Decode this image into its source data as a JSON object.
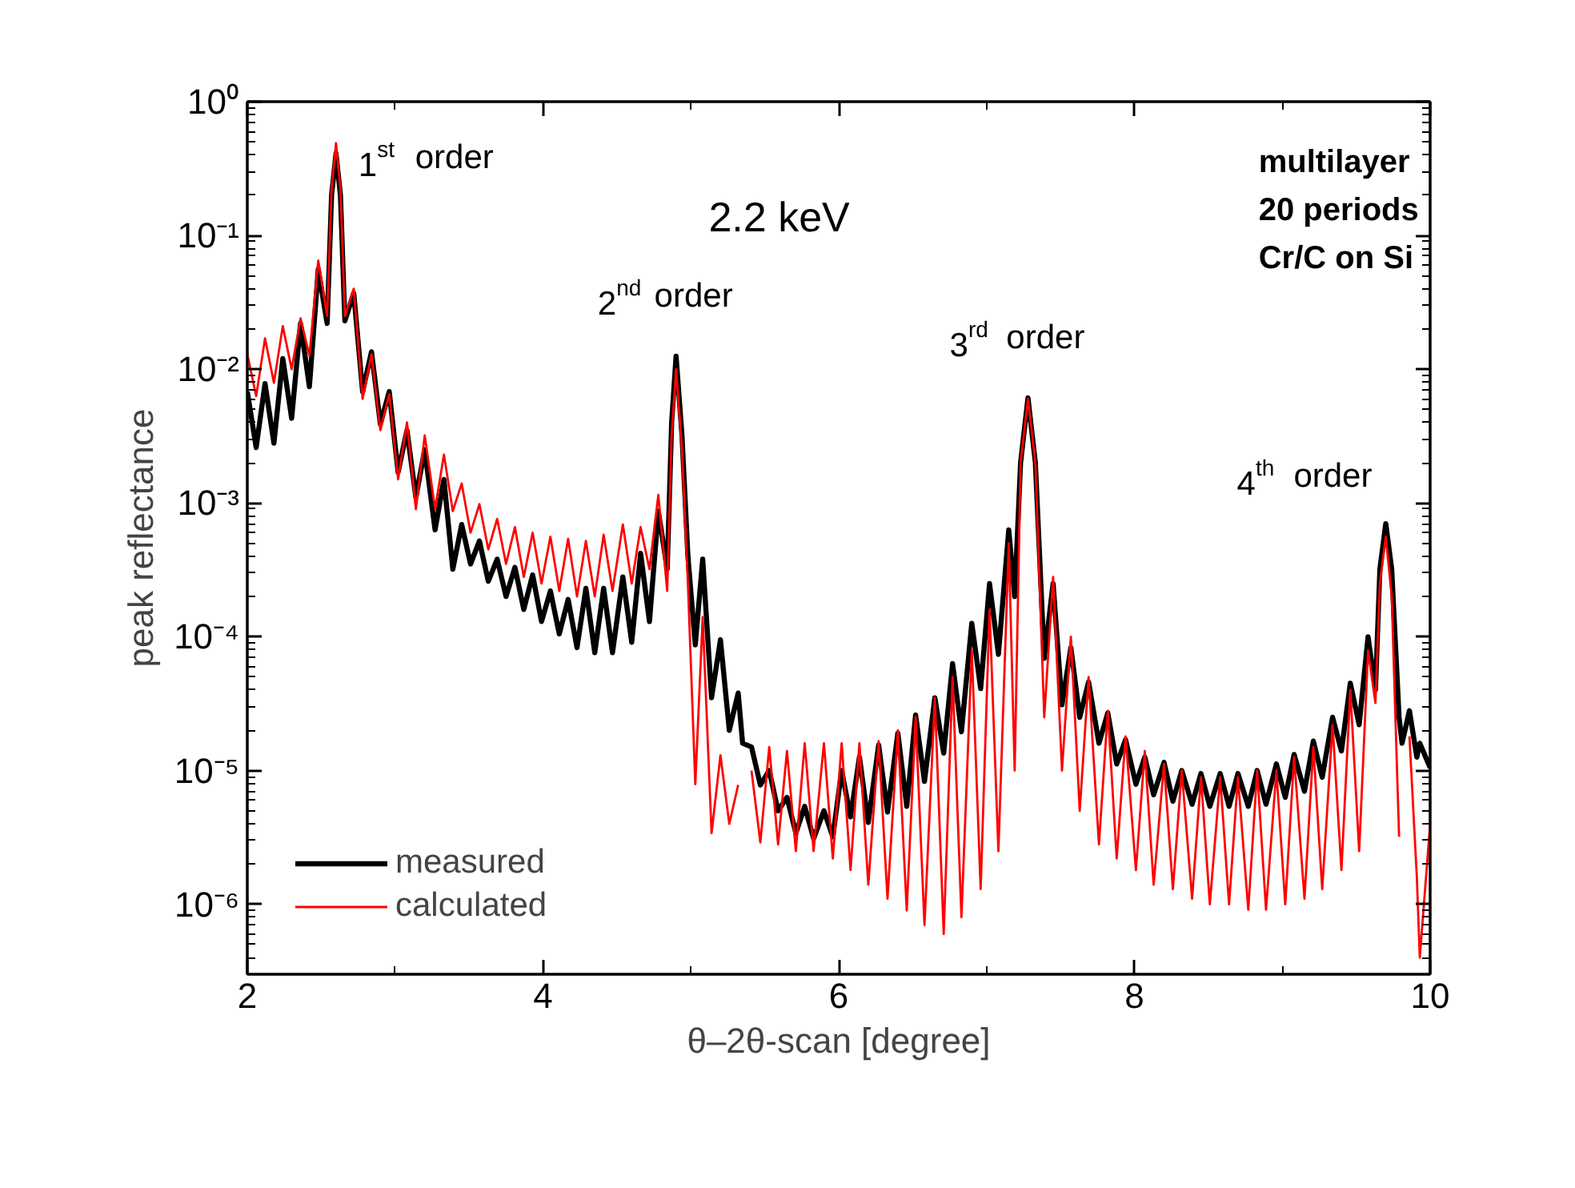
{
  "chart_data": {
    "type": "line",
    "log": "y",
    "xlabel": "θ–2θ-scan [degree]",
    "ylabel": "peak reflectance",
    "xlim": [
      2,
      10
    ],
    "xticks": [
      2,
      4,
      6,
      8,
      10
    ],
    "ylim": [
      3e-07,
      1
    ],
    "yticks": [
      {
        "value": 1,
        "label": "10⁰"
      },
      {
        "value": 0.1,
        "label": "10⁻¹"
      },
      {
        "value": 0.01,
        "label": "10⁻²"
      },
      {
        "value": 0.001,
        "label": "10⁻³"
      },
      {
        "value": 0.0001,
        "label": "10⁻⁴"
      },
      {
        "value": 1e-05,
        "label": "10⁻⁵"
      },
      {
        "value": 1e-06,
        "label": "10⁻⁶"
      }
    ],
    "legend": "bottom left",
    "annotations": [
      {
        "text": "1$^{st}$ order",
        "x": 2.6,
        "y": 0.41
      },
      {
        "text": "2$^{nd}$ order",
        "x": 4.9,
        "y": 0.0125
      },
      {
        "text": "3$^{rd}$ order",
        "x": 7.28,
        "y": 0.0061
      },
      {
        "text": "4$^{th}$ order",
        "x": 9.7,
        "y": 0.0007
      },
      "2.2 keV",
      "multilayer",
      "20 periods",
      "Cr/C on Si"
    ],
    "x": [
      2.0,
      2.06,
      2.12,
      2.18,
      2.24,
      2.3,
      2.36,
      2.42,
      2.48,
      2.54,
      2.57,
      2.6,
      2.63,
      2.66,
      2.72,
      2.78,
      2.84,
      2.9,
      2.96,
      3.02,
      3.08,
      3.14,
      3.2,
      3.27,
      3.33,
      3.39,
      3.45,
      3.51,
      3.57,
      3.63,
      3.69,
      3.75,
      3.81,
      3.87,
      3.93,
      3.99,
      4.05,
      4.11,
      4.17,
      4.23,
      4.29,
      4.35,
      4.41,
      4.47,
      4.54,
      4.6,
      4.66,
      4.72,
      4.78,
      4.84,
      4.87,
      4.9,
      4.94,
      4.98,
      5.03,
      5.08,
      5.14,
      5.2,
      5.26,
      5.32,
      5.35,
      5.41,
      5.47,
      5.53,
      5.59,
      5.65,
      5.71,
      5.77,
      5.83,
      5.9,
      5.96,
      6.02,
      6.08,
      6.14,
      6.2,
      6.27,
      6.33,
      6.4,
      6.46,
      6.52,
      6.58,
      6.65,
      6.71,
      6.77,
      6.83,
      6.9,
      6.96,
      7.02,
      7.08,
      7.15,
      7.19,
      7.23,
      7.28,
      7.33,
      7.39,
      7.45,
      7.51,
      7.57,
      7.63,
      7.69,
      7.76,
      7.82,
      7.88,
      7.94,
      8.01,
      8.07,
      8.13,
      8.2,
      8.26,
      8.32,
      8.39,
      8.45,
      8.51,
      8.58,
      8.64,
      8.7,
      8.77,
      8.83,
      8.89,
      8.96,
      9.02,
      9.08,
      9.15,
      9.21,
      9.27,
      9.34,
      9.4,
      9.46,
      9.52,
      9.58,
      9.63,
      9.66,
      9.7,
      9.74,
      9.79,
      9.81,
      9.86,
      9.91,
      9.93,
      10.0
    ],
    "series": [
      {
        "name": "measured",
        "color": "#000000",
        "values": [
          0.0068,
          0.0026,
          0.0078,
          0.0028,
          0.012,
          0.0043,
          0.022,
          0.0074,
          0.056,
          0.022,
          0.2,
          0.41,
          0.2,
          0.023,
          0.037,
          0.0068,
          0.0135,
          0.0039,
          0.0068,
          0.0017,
          0.0035,
          0.0011,
          0.0025,
          0.00063,
          0.0015,
          0.00032,
          0.00069,
          0.00035,
          0.00052,
          0.00026,
          0.00038,
          0.0002,
          0.00033,
          0.00016,
          0.00029,
          0.00013,
          0.00022,
          0.000105,
          0.00019,
          8.3e-05,
          0.00023,
          7.6e-05,
          0.00023,
          7.6e-05,
          0.00028,
          9.1e-05,
          0.00042,
          0.00013,
          0.00087,
          0.00032,
          0.004,
          0.0125,
          0.0032,
          0.0004,
          8.7e-05,
          0.00038,
          3.5e-05,
          9.5e-05,
          2e-05,
          3.8e-05,
          1.6e-05,
          1.5e-05,
          7.8e-06,
          1e-05,
          5e-06,
          6.3e-06,
          3.4e-06,
          5.4e-06,
          3.1e-06,
          5e-06,
          3.2e-06,
          1e-05,
          4.5e-06,
          1.26e-05,
          4.1e-06,
          1.55e-05,
          4.9e-06,
          1.9e-05,
          5.4e-06,
          2.6e-05,
          8.3e-06,
          3.5e-05,
          1.35e-05,
          6.3e-05,
          1.95e-05,
          0.000126,
          4.1e-05,
          0.00025,
          7.4e-05,
          0.00063,
          0.0002,
          0.002,
          0.0061,
          0.002,
          6.9e-05,
          0.00025,
          3.1e-05,
          8.3e-05,
          2.5e-05,
          4.6e-05,
          1.6e-05,
          2.7e-05,
          1.12e-05,
          1.7e-05,
          7.9e-06,
          1.26e-05,
          6.6e-06,
          1.15e-05,
          5.9e-06,
          1e-05,
          5.6e-06,
          9.5e-06,
          5.4e-06,
          9.5e-06,
          5.4e-06,
          9.5e-06,
          5.4e-06,
          1e-05,
          5.6e-06,
          1.12e-05,
          6.3e-06,
          1.32e-05,
          7e-06,
          1.66e-05,
          8.9e-06,
          2.5e-05,
          1.4e-05,
          4.5e-05,
          2.2e-05,
          0.0001,
          4e-05,
          0.00032,
          0.0007,
          0.00032,
          2.5e-05,
          1.6e-05,
          2.8e-05,
          1.26e-05,
          1.6e-05,
          1.05e-05
        ]
      },
      {
        "name": "calculated",
        "color": "#ff0000",
        "values": [
          0.013,
          0.0063,
          0.017,
          0.0079,
          0.021,
          0.01,
          0.024,
          0.0126,
          0.065,
          0.025,
          0.22,
          0.49,
          0.22,
          0.025,
          0.04,
          0.006,
          0.013,
          0.0035,
          0.0065,
          0.0015,
          0.004,
          0.0009,
          0.0032,
          0.0009,
          0.0023,
          0.00087,
          0.0014,
          0.0006,
          0.00098,
          0.00045,
          0.00076,
          0.00035,
          0.00066,
          0.00028,
          0.0006,
          0.00025,
          0.00056,
          0.00022,
          0.00054,
          0.0002,
          0.00052,
          0.0002,
          0.00058,
          0.00022,
          0.00069,
          0.00025,
          0.00066,
          0.00032,
          0.00115,
          0.00022,
          0.0032,
          0.01,
          0.0025,
          0.00025,
          7.9e-06,
          0.00014,
          3.4e-06,
          1.3e-05,
          4e-06,
          7.8e-06,
          null,
          1e-05,
          2.9e-06,
          1.5e-05,
          2.8e-06,
          1.4e-05,
          2.5e-06,
          1.6e-05,
          2.5e-06,
          1.6e-05,
          2.2e-06,
          1.6e-05,
          1.8e-06,
          1.6e-05,
          1.4e-06,
          1.66e-05,
          1.1e-06,
          2e-05,
          9e-07,
          2.5e-05,
          7e-07,
          3.5e-05,
          6e-07,
          5e-05,
          8e-07,
          7.9e-05,
          1.3e-06,
          0.00016,
          2.5e-06,
          0.0005,
          1e-05,
          0.002,
          0.006,
          0.002,
          2.5e-05,
          0.00028,
          1e-05,
          0.0001,
          5e-06,
          5e-05,
          2.8e-06,
          2.8e-05,
          2.2e-06,
          1.8e-05,
          1.8e-06,
          1.4e-05,
          1.4e-06,
          1.12e-05,
          1.3e-06,
          1e-05,
          1.1e-06,
          8.9e-06,
          1e-06,
          8.9e-06,
          1e-06,
          8.9e-06,
          9.1e-07,
          1e-05,
          9.1e-07,
          1e-05,
          1e-06,
          1.26e-05,
          1.1e-06,
          1.5e-05,
          1.3e-06,
          2.2e-05,
          1.8e-06,
          4e-05,
          2.5e-06,
          7.9e-05,
          3.2e-05,
          0.00025,
          0.00056,
          0.0002,
          3.2e-06,
          null,
          1.8e-05,
          1.6e-06,
          4e-07,
          4e-06
        ]
      }
    ]
  }
}
